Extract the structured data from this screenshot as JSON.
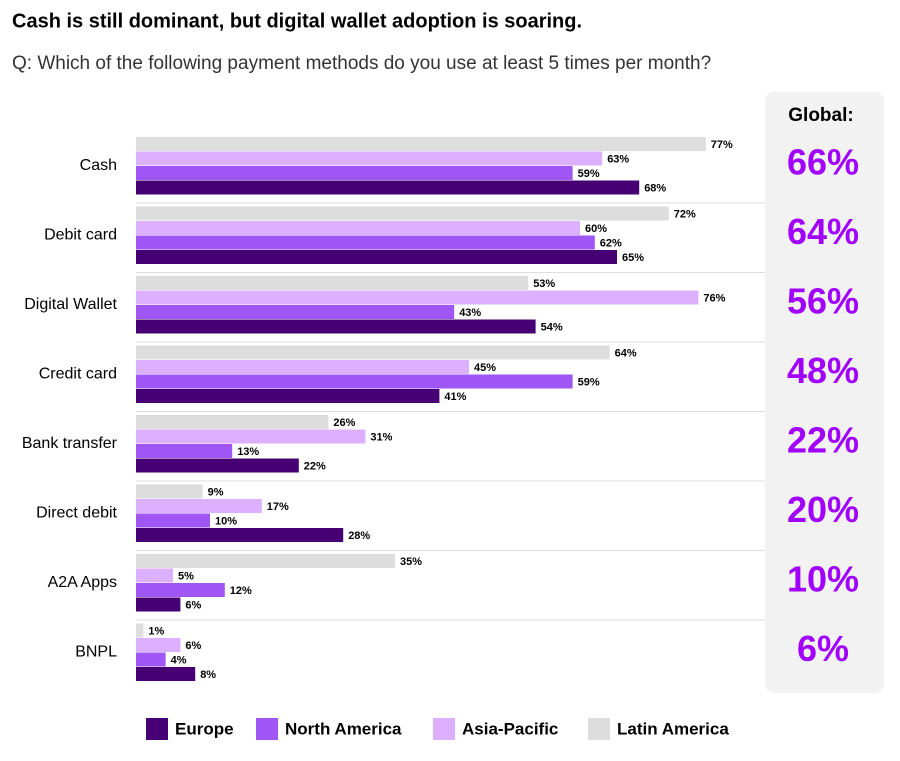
{
  "chart_data": {
    "type": "bar",
    "orientation": "horizontal",
    "title": "Cash is still dominant, but digital wallet adoption is soaring.",
    "subtitle": "Q: Which of the following payment methods do you use at least 5 times per month?",
    "categories": [
      "Cash",
      "Debit card",
      "Digital Wallet",
      "Credit card",
      "Bank transfer",
      "Direct debit",
      "A2A Apps",
      "BNPL"
    ],
    "series": [
      {
        "name": "Europe",
        "color": "#460073",
        "values": [
          68,
          65,
          54,
          41,
          22,
          28,
          6,
          8
        ],
        "value_labels": [
          "68%",
          "65%",
          "54%",
          "41%",
          "22%",
          "28%",
          "6%",
          "8%"
        ]
      },
      {
        "name": "North America",
        "color": "#a055f5",
        "values": [
          59,
          62,
          43,
          59,
          13,
          10,
          12,
          4
        ],
        "value_labels": [
          "59%",
          "62%",
          "43%",
          "59%",
          "13%",
          "10%",
          "12%",
          "4%"
        ]
      },
      {
        "name": "Asia-Pacific",
        "color": "#dcafff",
        "values": [
          63,
          60,
          76,
          45,
          31,
          17,
          5,
          6
        ],
        "value_labels": [
          "63%",
          "60%",
          "76%",
          "45%",
          "31%",
          "17%",
          "5%",
          "6%"
        ]
      },
      {
        "name": "Latin America",
        "color": "#dddddd",
        "values": [
          77,
          72,
          53,
          64,
          26,
          9,
          35,
          1
        ],
        "value_labels": [
          "77%",
          "72%",
          "53%",
          "64%",
          "26%",
          "9%",
          "35%",
          "1%"
        ]
      }
    ],
    "global": {
      "label": "Global:",
      "values": [
        66,
        64,
        56,
        48,
        22,
        20,
        10,
        6
      ],
      "value_labels": [
        "66%",
        "64%",
        "56%",
        "48%",
        "22%",
        "20%",
        "10%",
        "6%"
      ]
    },
    "legend": "bottom"
  }
}
